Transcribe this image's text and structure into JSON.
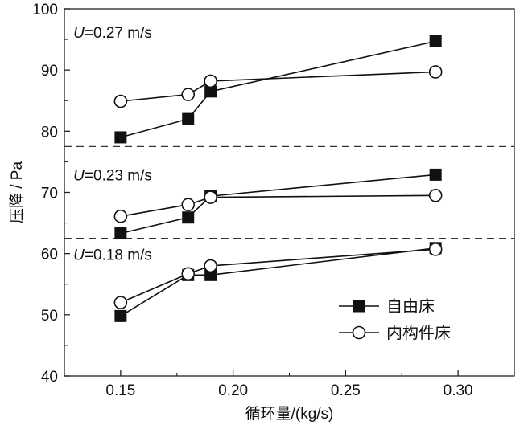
{
  "chart_data": {
    "type": "line",
    "title": "",
    "xlabel": "循环量/(kg/s)",
    "ylabel": "压降 / Pa",
    "xlim": [
      0.125,
      0.325
    ],
    "ylim": [
      40,
      100
    ],
    "x_ticks": [
      0.15,
      0.2,
      0.25,
      0.3
    ],
    "x_tick_labels": [
      "0.15",
      "0.20",
      "0.25",
      "0.30"
    ],
    "y_ticks": [
      40,
      50,
      60,
      70,
      80,
      90,
      100
    ],
    "y_tick_labels": [
      "40",
      "50",
      "60",
      "70",
      "80",
      "90",
      "100"
    ],
    "grid": false,
    "legend_position": "bottom-right",
    "separators": [
      77.5,
      62.5
    ],
    "annotations": [
      {
        "italic": "U",
        "text": "=0.27 m/s",
        "x": 0.129,
        "y": 95.3
      },
      {
        "italic": "U",
        "text": "=0.23 m/s",
        "x": 0.129,
        "y": 72.0
      },
      {
        "italic": "U",
        "text": "=0.18 m/s",
        "x": 0.129,
        "y": 59.0
      }
    ],
    "series": [
      {
        "name": "自由床",
        "group": "U=0.27 m/s",
        "marker": "square",
        "x": [
          0.15,
          0.18,
          0.19,
          0.29
        ],
        "y": [
          79.0,
          82.0,
          86.5,
          94.7
        ]
      },
      {
        "name": "内构件床",
        "group": "U=0.27 m/s",
        "marker": "circle",
        "x": [
          0.15,
          0.18,
          0.19,
          0.29
        ],
        "y": [
          84.9,
          86.0,
          88.2,
          89.7
        ]
      },
      {
        "name": "自由床",
        "group": "U=0.23 m/s",
        "marker": "square",
        "x": [
          0.15,
          0.18,
          0.19,
          0.29
        ],
        "y": [
          63.3,
          65.9,
          69.4,
          72.9
        ]
      },
      {
        "name": "内构件床",
        "group": "U=0.23 m/s",
        "marker": "circle",
        "x": [
          0.15,
          0.18,
          0.19,
          0.29
        ],
        "y": [
          66.1,
          68.0,
          69.2,
          69.5
        ]
      },
      {
        "name": "自由床",
        "group": "U=0.18 m/s",
        "marker": "square",
        "x": [
          0.15,
          0.18,
          0.19,
          0.29
        ],
        "y": [
          49.8,
          56.5,
          56.5,
          60.9
        ]
      },
      {
        "name": "内构件床",
        "group": "U=0.18 m/s",
        "marker": "circle",
        "x": [
          0.15,
          0.18,
          0.19,
          0.29
        ],
        "y": [
          52.0,
          56.7,
          58.0,
          60.7
        ]
      }
    ],
    "legend": [
      {
        "label": "自由床",
        "marker": "square"
      },
      {
        "label": "内构件床",
        "marker": "circle"
      }
    ]
  }
}
